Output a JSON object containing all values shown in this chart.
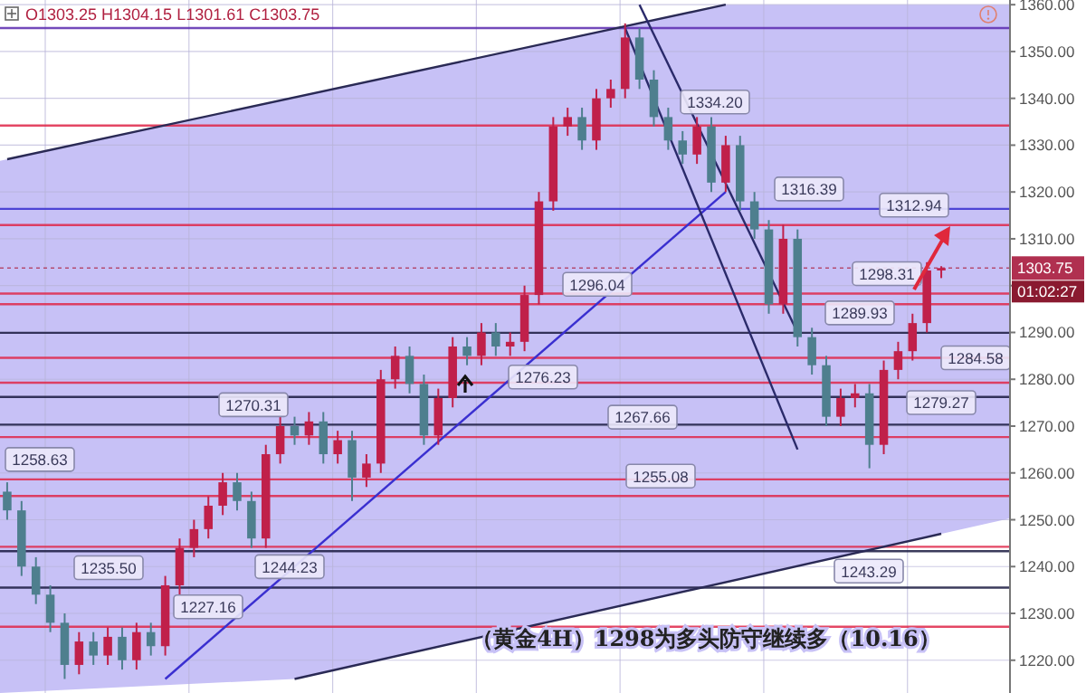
{
  "chart_data": {
    "type": "candlestick",
    "title": "（黄金4H）1298为多头防守继续多（10.16）",
    "annotations": [
      "O1303.25 H1304.15 L1301.61 C1303.75",
      "01:02:27"
    ],
    "categories": [
      null,
      null,
      null,
      null,
      null,
      null,
      null,
      null,
      null,
      null,
      null,
      null,
      null,
      null,
      null,
      null,
      null,
      null,
      null,
      null,
      null,
      null,
      null,
      null,
      null,
      null,
      null,
      null,
      null,
      null,
      null,
      null,
      null,
      null,
      null,
      null,
      null,
      null,
      null,
      null,
      null,
      null,
      null,
      null,
      null,
      null,
      null,
      null,
      null,
      null,
      null,
      null,
      null,
      null,
      null,
      null,
      null,
      null,
      null,
      null,
      null,
      null,
      null,
      null,
      null,
      null
    ],
    "ohlc": [
      [
        1256,
        1258,
        1250,
        1252
      ],
      [
        1252,
        1254,
        1238,
        1240
      ],
      [
        1240,
        1242,
        1232,
        1234
      ],
      [
        1234,
        1236,
        1226,
        1228
      ],
      [
        1228,
        1230,
        1216,
        1219
      ],
      [
        1219,
        1226,
        1217,
        1224
      ],
      [
        1224,
        1226,
        1219,
        1221
      ],
      [
        1221,
        1227,
        1219,
        1225
      ],
      [
        1225,
        1227,
        1218,
        1220
      ],
      [
        1220,
        1228,
        1218,
        1226
      ],
      [
        1226,
        1228,
        1221,
        1223
      ],
      [
        1223,
        1238,
        1221,
        1236
      ],
      [
        1236,
        1246,
        1234,
        1244
      ],
      [
        1244,
        1250,
        1242,
        1248
      ],
      [
        1248,
        1255,
        1246,
        1253
      ],
      [
        1253,
        1260,
        1251,
        1258
      ],
      [
        1258,
        1260,
        1252,
        1254
      ],
      [
        1254,
        1256,
        1244,
        1246
      ],
      [
        1246,
        1266,
        1244,
        1264
      ],
      [
        1264,
        1272,
        1262,
        1270
      ],
      [
        1270,
        1272,
        1266,
        1268
      ],
      [
        1268,
        1273,
        1266,
        1271
      ],
      [
        1271,
        1273,
        1262,
        1264
      ],
      [
        1264,
        1269,
        1262,
        1267
      ],
      [
        1267,
        1269,
        1254,
        1259
      ],
      [
        1259,
        1264,
        1257,
        1262
      ],
      [
        1262,
        1282,
        1260,
        1280
      ],
      [
        1280,
        1287,
        1278,
        1285
      ],
      [
        1285,
        1287,
        1277,
        1279
      ],
      [
        1279,
        1281,
        1266,
        1268
      ],
      [
        1268,
        1278,
        1266,
        1276
      ],
      [
        1276,
        1289,
        1274,
        1287
      ],
      [
        1287,
        1289,
        1283,
        1285
      ],
      [
        1285,
        1292,
        1283,
        1290
      ],
      [
        1290,
        1292,
        1285,
        1287
      ],
      [
        1287,
        1290,
        1285,
        1288
      ],
      [
        1288,
        1300,
        1286,
        1298
      ],
      [
        1298,
        1320,
        1296,
        1318
      ],
      [
        1318,
        1336,
        1316,
        1334
      ],
      [
        1334,
        1338,
        1332,
        1336
      ],
      [
        1336,
        1338,
        1329,
        1331
      ],
      [
        1331,
        1342,
        1329,
        1340
      ],
      [
        1340,
        1344,
        1338,
        1342
      ],
      [
        1342,
        1356,
        1340,
        1353
      ],
      [
        1353,
        1355,
        1342,
        1344
      ],
      [
        1344,
        1346,
        1334,
        1336
      ],
      [
        1336,
        1338,
        1329,
        1331
      ],
      [
        1331,
        1333,
        1326,
        1328
      ],
      [
        1328,
        1336,
        1326,
        1334
      ],
      [
        1334,
        1336,
        1320,
        1322
      ],
      [
        1322,
        1332,
        1320,
        1330
      ],
      [
        1330,
        1332,
        1316,
        1318
      ],
      [
        1318,
        1320,
        1310,
        1312
      ],
      [
        1312,
        1314,
        1294,
        1296
      ],
      [
        1296,
        1313,
        1294,
        1310
      ],
      [
        1310,
        1312,
        1287,
        1289
      ],
      [
        1289,
        1291,
        1281,
        1283
      ],
      [
        1283,
        1285,
        1270,
        1272
      ],
      [
        1272,
        1278,
        1270,
        1276
      ],
      [
        1276,
        1279,
        1274,
        1277
      ],
      [
        1277,
        1279,
        1261,
        1266
      ],
      [
        1266,
        1284,
        1264,
        1282
      ],
      [
        1282,
        1288,
        1280,
        1286
      ],
      [
        1286,
        1294,
        1284,
        1292
      ],
      [
        1292,
        1305,
        1290,
        1303.25
      ],
      [
        1303.25,
        1304.15,
        1301.61,
        1303.75
      ]
    ],
    "colors": [
      "#4e7f8e",
      "#4e7f8e",
      "#4e7f8e",
      "#4e7f8e",
      "#4e7f8e",
      "#c0204a",
      "#4e7f8e",
      "#c0204a",
      "#4e7f8e",
      "#c0204a",
      "#4e7f8e",
      "#c0204a",
      "#c0204a",
      "#c0204a",
      "#c0204a",
      "#c0204a",
      "#4e7f8e",
      "#4e7f8e",
      "#c0204a",
      "#c0204a",
      "#4e7f8e",
      "#c0204a",
      "#4e7f8e",
      "#c0204a",
      "#4e7f8e",
      "#c0204a",
      "#c0204a",
      "#c0204a",
      "#4e7f8e",
      "#4e7f8e",
      "#c0204a",
      "#c0204a",
      "#4e7f8e",
      "#c0204a",
      "#4e7f8e",
      "#c0204a",
      "#c0204a",
      "#c0204a",
      "#c0204a",
      "#c0204a",
      "#4e7f8e",
      "#c0204a",
      "#c0204a",
      "#c0204a",
      "#4e7f8e",
      "#4e7f8e",
      "#4e7f8e",
      "#4e7f8e",
      "#c0204a",
      "#4e7f8e",
      "#c0204a",
      "#4e7f8e",
      "#4e7f8e",
      "#4e7f8e",
      "#c0204a",
      "#4e7f8e",
      "#4e7f8e",
      "#4e7f8e",
      "#c0204a",
      "#c0204a",
      "#4e7f8e",
      "#c0204a",
      "#c0204a",
      "#c0204a",
      "#c0204a",
      "#c0204a"
    ],
    "series": [
      {
        "type": "line",
        "color": "#2a2a55",
        "values": [
          1327,
          null,
          null,
          null,
          null,
          null,
          null,
          null,
          null,
          null,
          null,
          null,
          null,
          null,
          null,
          null,
          null,
          null,
          null,
          null,
          null,
          null,
          null,
          null,
          null,
          null,
          null,
          null,
          null,
          null,
          null,
          null,
          null,
          null,
          null,
          null,
          null,
          null,
          null,
          null,
          null,
          null,
          null,
          null,
          null,
          null,
          null,
          null,
          null,
          null,
          1360,
          null,
          null,
          null,
          null,
          null,
          null,
          null,
          null,
          null,
          null,
          null,
          null,
          null,
          null,
          null
        ]
      },
      {
        "type": "line",
        "color": "#2a2a55",
        "values": [
          null,
          null,
          null,
          null,
          null,
          null,
          null,
          null,
          null,
          null,
          null,
          null,
          null,
          null,
          null,
          null,
          null,
          null,
          null,
          null,
          1216,
          null,
          null,
          null,
          null,
          null,
          null,
          null,
          null,
          null,
          null,
          null,
          null,
          null,
          null,
          null,
          null,
          null,
          null,
          null,
          null,
          null,
          null,
          null,
          null,
          null,
          null,
          null,
          null,
          null,
          null,
          null,
          null,
          null,
          null,
          null,
          null,
          null,
          null,
          null,
          null,
          null,
          null,
          null,
          null,
          1247
        ]
      },
      {
        "type": "line",
        "color": "#3a2fd0",
        "values": [
          null,
          null,
          null,
          null,
          null,
          null,
          null,
          null,
          null,
          null,
          null,
          1216,
          null,
          null,
          null,
          null,
          null,
          null,
          null,
          null,
          null,
          null,
          null,
          null,
          null,
          null,
          null,
          null,
          null,
          null,
          null,
          null,
          null,
          null,
          null,
          null,
          null,
          null,
          null,
          null,
          null,
          null,
          null,
          null,
          null,
          null,
          null,
          null,
          null,
          null,
          1320,
          null,
          null,
          null,
          null,
          null,
          null,
          null,
          null,
          null,
          null,
          null,
          null,
          null,
          null,
          null
        ]
      },
      {
        "type": "line",
        "color": "#2a2a6a",
        "values": [
          null,
          null,
          null,
          null,
          null,
          null,
          null,
          null,
          null,
          null,
          null,
          null,
          null,
          null,
          null,
          null,
          null,
          null,
          null,
          null,
          null,
          null,
          null,
          null,
          null,
          null,
          null,
          null,
          null,
          null,
          null,
          null,
          null,
          null,
          null,
          null,
          null,
          null,
          null,
          null,
          null,
          null,
          null,
          1355,
          null,
          null,
          null,
          null,
          null,
          null,
          null,
          null,
          null,
          null,
          null,
          1265,
          null,
          null,
          null,
          null,
          null,
          null,
          null,
          null,
          null,
          null
        ]
      },
      {
        "type": "line",
        "color": "#2a2a6a",
        "values": [
          null,
          null,
          null,
          null,
          null,
          null,
          null,
          null,
          null,
          null,
          null,
          null,
          null,
          null,
          null,
          null,
          null,
          null,
          null,
          null,
          null,
          null,
          null,
          null,
          null,
          null,
          null,
          null,
          null,
          null,
          null,
          null,
          null,
          null,
          null,
          null,
          null,
          null,
          null,
          null,
          null,
          null,
          null,
          null,
          1360,
          null,
          null,
          null,
          null,
          null,
          null,
          null,
          null,
          null,
          null,
          1290,
          null,
          null,
          null,
          null,
          null,
          null,
          null,
          null,
          null,
          null
        ]
      }
    ],
    "ylim": [
      1213,
      1361
    ],
    "yticks": [
      {
        "value": 1220,
        "label": "1220.00"
      },
      {
        "value": 1230,
        "label": "1230.00"
      },
      {
        "value": 1240,
        "label": "1240.00"
      },
      {
        "value": 1250,
        "label": "1250.00"
      },
      {
        "value": 1260,
        "label": "1260.00"
      },
      {
        "value": 1270,
        "label": "1270.00"
      },
      {
        "value": 1280,
        "label": "1280.00"
      },
      {
        "value": 1290,
        "label": "1290.00"
      },
      {
        "value": 1300,
        "label": null
      },
      {
        "value": 1310,
        "label": "1310.00"
      },
      {
        "value": 1320,
        "label": "1320.00"
      },
      {
        "value": 1330,
        "label": "1330.00"
      },
      {
        "value": 1340,
        "label": "1340.00"
      },
      {
        "value": 1350,
        "label": "1350.00"
      },
      {
        "value": 1360,
        "label": "1360.00"
      }
    ],
    "ref_lines": [
      {
        "axis": "y",
        "value": 1355,
        "color": "#5b2bb0"
      },
      {
        "axis": "y",
        "value": 1334.2,
        "label": "1334.20",
        "color": "#e0284a"
      },
      {
        "axis": "y",
        "value": 1316.39,
        "label": "1316.39",
        "color": "#3a30d0"
      },
      {
        "axis": "y",
        "value": 1312.94,
        "label": "1312.94",
        "color": "#e0284a"
      },
      {
        "axis": "y",
        "value": 1303.75,
        "label": "1303.75",
        "color": "#b03050",
        "line_style": "dotted"
      },
      {
        "axis": "y",
        "value": 1298.31,
        "label": "1298.31",
        "color": "#e0284a"
      },
      {
        "axis": "y",
        "value": 1296.04,
        "label": "1296.04",
        "color": "#e0284a"
      },
      {
        "axis": "y",
        "value": 1289.93,
        "label": "1289.93",
        "color": "#1a1a40"
      },
      {
        "axis": "y",
        "value": 1284.58,
        "label": "1284.58",
        "color": "#e0284a"
      },
      {
        "axis": "y",
        "value": 1279.27,
        "label": "1279.27",
        "color": "#e0284a"
      },
      {
        "axis": "y",
        "value": 1276.23,
        "label": "1276.23",
        "color": "#1a1a40"
      },
      {
        "axis": "y",
        "value": 1270.31,
        "label": "1270.31",
        "color": "#1a1a40"
      },
      {
        "axis": "y",
        "value": 1267.66,
        "label": "1267.66",
        "color": "#e0284a"
      },
      {
        "axis": "y",
        "value": 1258.63,
        "label": "1258.63",
        "color": "#e0284a"
      },
      {
        "axis": "y",
        "value": 1255.08,
        "label": "1255.08",
        "color": "#e0284a"
      },
      {
        "axis": "y",
        "value": 1244.23,
        "label": "1244.23",
        "color": "#e0284a"
      },
      {
        "axis": "y",
        "value": 1243.29,
        "label": "1243.29",
        "color": "#1a1a40"
      },
      {
        "axis": "y",
        "value": 1235.5,
        "label": "1235.50",
        "color": "#1a1a40"
      },
      {
        "axis": "y",
        "value": 1227.16,
        "label": "1227.16",
        "color": "#e0284a"
      }
    ],
    "grid": true,
    "tick_labels": "y",
    "marker": "none"
  }
}
